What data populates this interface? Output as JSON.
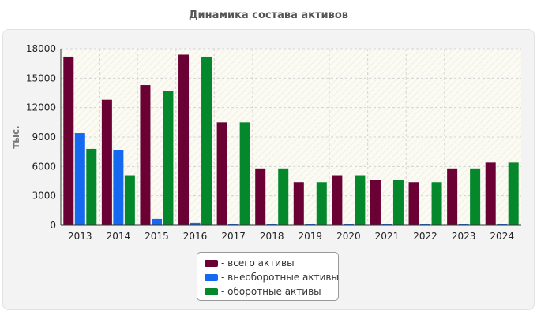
{
  "chart_data": {
    "type": "bar",
    "title": "Динамика состава активов",
    "ylabel": "тыс.",
    "xlabel": "",
    "ylim": [
      0,
      18000
    ],
    "yticks": [
      0,
      3000,
      6000,
      9000,
      12000,
      15000,
      18000
    ],
    "grid": true,
    "legend_position": "bottom-center",
    "categories": [
      "2013",
      "2014",
      "2015",
      "2016",
      "2017",
      "2018",
      "2019",
      "2020",
      "2021",
      "2022",
      "2023",
      "2024"
    ],
    "series": [
      {
        "name": "- всего активы",
        "color": "#6a0033",
        "values": [
          17200,
          12800,
          14300,
          17400,
          10500,
          5800,
          4400,
          5100,
          4600,
          4400,
          5800,
          6400
        ]
      },
      {
        "name": "- внеоборотные активы",
        "color": "#1569f0",
        "values": [
          9400,
          7700,
          650,
          250,
          60,
          60,
          60,
          60,
          60,
          60,
          60,
          60
        ]
      },
      {
        "name": "- оборотные активы",
        "color": "#05882c",
        "values": [
          7800,
          5100,
          13700,
          17200,
          10500,
          5800,
          4400,
          5100,
          4600,
          4400,
          5800,
          6400
        ]
      }
    ]
  }
}
